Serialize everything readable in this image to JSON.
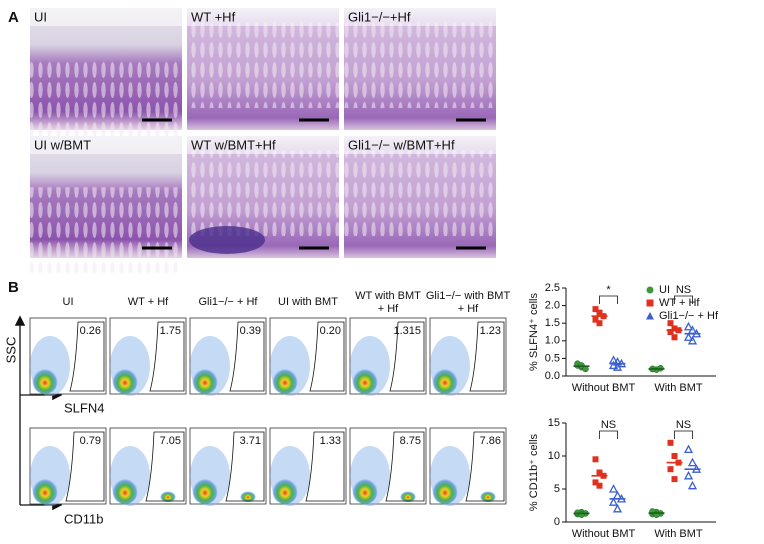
{
  "panel_a": {
    "letter": "A",
    "images": [
      "UI",
      "WT +Hf",
      "Gli1−/−+Hf",
      "UI w/BMT",
      "WT w/BMT+Hf",
      "Gli1−/− w/BMT+Hf"
    ]
  },
  "panel_b": {
    "letter": "B",
    "columns": [
      [
        "UI"
      ],
      [
        "WT + Hf"
      ],
      [
        "Gli1−/− + Hf"
      ],
      [
        "UI with BMT"
      ],
      [
        "WT with BMT",
        "+ Hf"
      ],
      [
        "Gli1−/− with BMT",
        "+ Hf"
      ]
    ],
    "y_axis": "SSC",
    "row_axes": [
      "SLFN4",
      "CD11b"
    ],
    "values": [
      [
        "0.26",
        "1.75",
        "0.39",
        "0.20",
        "1.315",
        "1.23"
      ],
      [
        "0.79",
        "7.05",
        "3.71",
        "1.33",
        "8.75",
        "7.86"
      ]
    ]
  },
  "chart_data": [
    {
      "type": "dot",
      "ylabel": "% SLFN4⁺ cells",
      "categories": [
        "Without BMT",
        "With BMT"
      ],
      "ylim": [
        0,
        2.5
      ],
      "yticks": [
        {
          "value": 0,
          "label": "0.0"
        },
        {
          "value": 0.5,
          "label": "0.5"
        },
        {
          "value": 1,
          "label": "1.0"
        },
        {
          "value": 1.5,
          "label": "1.5"
        },
        {
          "value": 2,
          "label": "2.0"
        },
        {
          "value": 2.5,
          "label": "2.5"
        }
      ],
      "annotations": [
        "*",
        "NS"
      ],
      "legend": "upper right",
      "series": [
        {
          "name": "UI",
          "color": "#3a9a3a",
          "marker": "circle",
          "values": [
            [
              0.3,
              0.25,
              0.2,
              0.35,
              0.3
            ],
            [
              0.2,
              0.18,
              0.22,
              0.2
            ]
          ],
          "means": [
            0.28,
            0.2
          ]
        },
        {
          "name": "WT + Hf",
          "color": "#e0301e",
          "marker": "square",
          "values": [
            [
              1.9,
              1.8,
              1.7,
              1.6,
              1.5
            ],
            [
              1.5,
              1.35,
              1.3,
              1.25,
              1.1
            ]
          ],
          "means": [
            1.7,
            1.3
          ]
        },
        {
          "name": "Gli1−/− + Hf",
          "color": "#3a5fd0",
          "marker": "triangle",
          "values": [
            [
              0.45,
              0.4,
              0.35,
              0.3,
              0.25
            ],
            [
              1.4,
              1.3,
              1.2,
              1.1,
              1.0
            ]
          ],
          "means": [
            0.35,
            1.2
          ]
        }
      ]
    },
    {
      "type": "dot",
      "ylabel": "% CD11b⁺ cells",
      "categories": [
        "Without BMT",
        "With BMT"
      ],
      "ylim": [
        0,
        15
      ],
      "yticks": [
        0,
        5,
        10,
        15
      ],
      "annotations": [
        "NS",
        "NS"
      ],
      "series": [
        {
          "name": "UI",
          "color": "#3a9a3a",
          "marker": "circle",
          "values": [
            [
              1.2,
              1.5,
              1.3,
              1.4,
              1.1
            ],
            [
              1.2,
              1.5,
              1.3,
              1.6,
              1.1
            ]
          ],
          "means": [
            1.3,
            1.35
          ]
        },
        {
          "name": "WT + Hf",
          "color": "#e0301e",
          "marker": "square",
          "values": [
            [
              9.5,
              7.5,
              7,
              6,
              5.5
            ],
            [
              12,
              10,
              9,
              8,
              6.5
            ]
          ],
          "means": [
            7,
            9
          ]
        },
        {
          "name": "Gli1−/− + Hf",
          "color": "#3a5fd0",
          "marker": "triangle",
          "values": [
            [
              5,
              4,
              3.5,
              3,
              2
            ],
            [
              11,
              9,
              8,
              7,
              5.5
            ]
          ],
          "means": [
            3.5,
            8
          ]
        }
      ]
    }
  ]
}
